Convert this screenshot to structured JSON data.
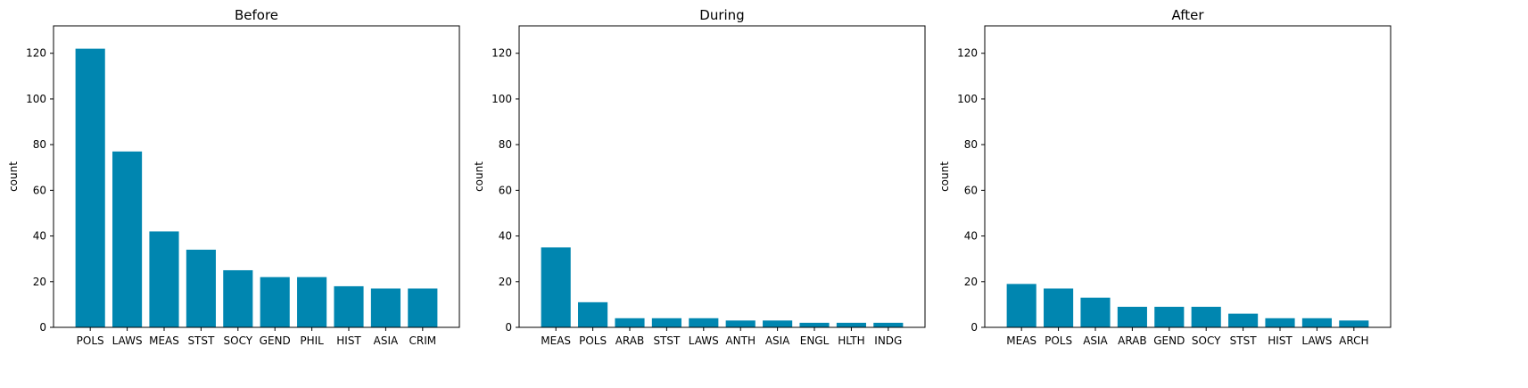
{
  "chart_data": [
    {
      "type": "bar",
      "title": "Before",
      "ylabel": "count",
      "xlabel": "",
      "ylim": [
        0,
        132
      ],
      "yticks": [
        0,
        20,
        40,
        60,
        80,
        100,
        120
      ],
      "categories": [
        "POLS",
        "LAWS",
        "MEAS",
        "STST",
        "SOCY",
        "GEND",
        "PHIL",
        "HIST",
        "ASIA",
        "CRIM"
      ],
      "values": [
        122,
        77,
        42,
        34,
        25,
        22,
        22,
        18,
        17,
        17
      ],
      "bar_color": "#0086b0",
      "grid": false
    },
    {
      "type": "bar",
      "title": "During",
      "ylabel": "count",
      "xlabel": "",
      "ylim": [
        0,
        132
      ],
      "yticks": [
        0,
        20,
        40,
        60,
        80,
        100,
        120
      ],
      "categories": [
        "MEAS",
        "POLS",
        "ARAB",
        "STST",
        "LAWS",
        "ANTH",
        "ASIA",
        "ENGL",
        "HLTH",
        "INDG"
      ],
      "values": [
        35,
        11,
        4,
        4,
        4,
        3,
        3,
        2,
        2,
        2
      ],
      "bar_color": "#0086b0",
      "grid": false
    },
    {
      "type": "bar",
      "title": "After",
      "ylabel": "count",
      "xlabel": "",
      "ylim": [
        0,
        132
      ],
      "yticks": [
        0,
        20,
        40,
        60,
        80,
        100,
        120
      ],
      "categories": [
        "MEAS",
        "POLS",
        "ASIA",
        "ARAB",
        "GEND",
        "SOCY",
        "STST",
        "HIST",
        "LAWS",
        "ARCH"
      ],
      "values": [
        19,
        17,
        13,
        9,
        9,
        9,
        6,
        4,
        4,
        3
      ],
      "bar_color": "#0086b0",
      "grid": false
    }
  ]
}
